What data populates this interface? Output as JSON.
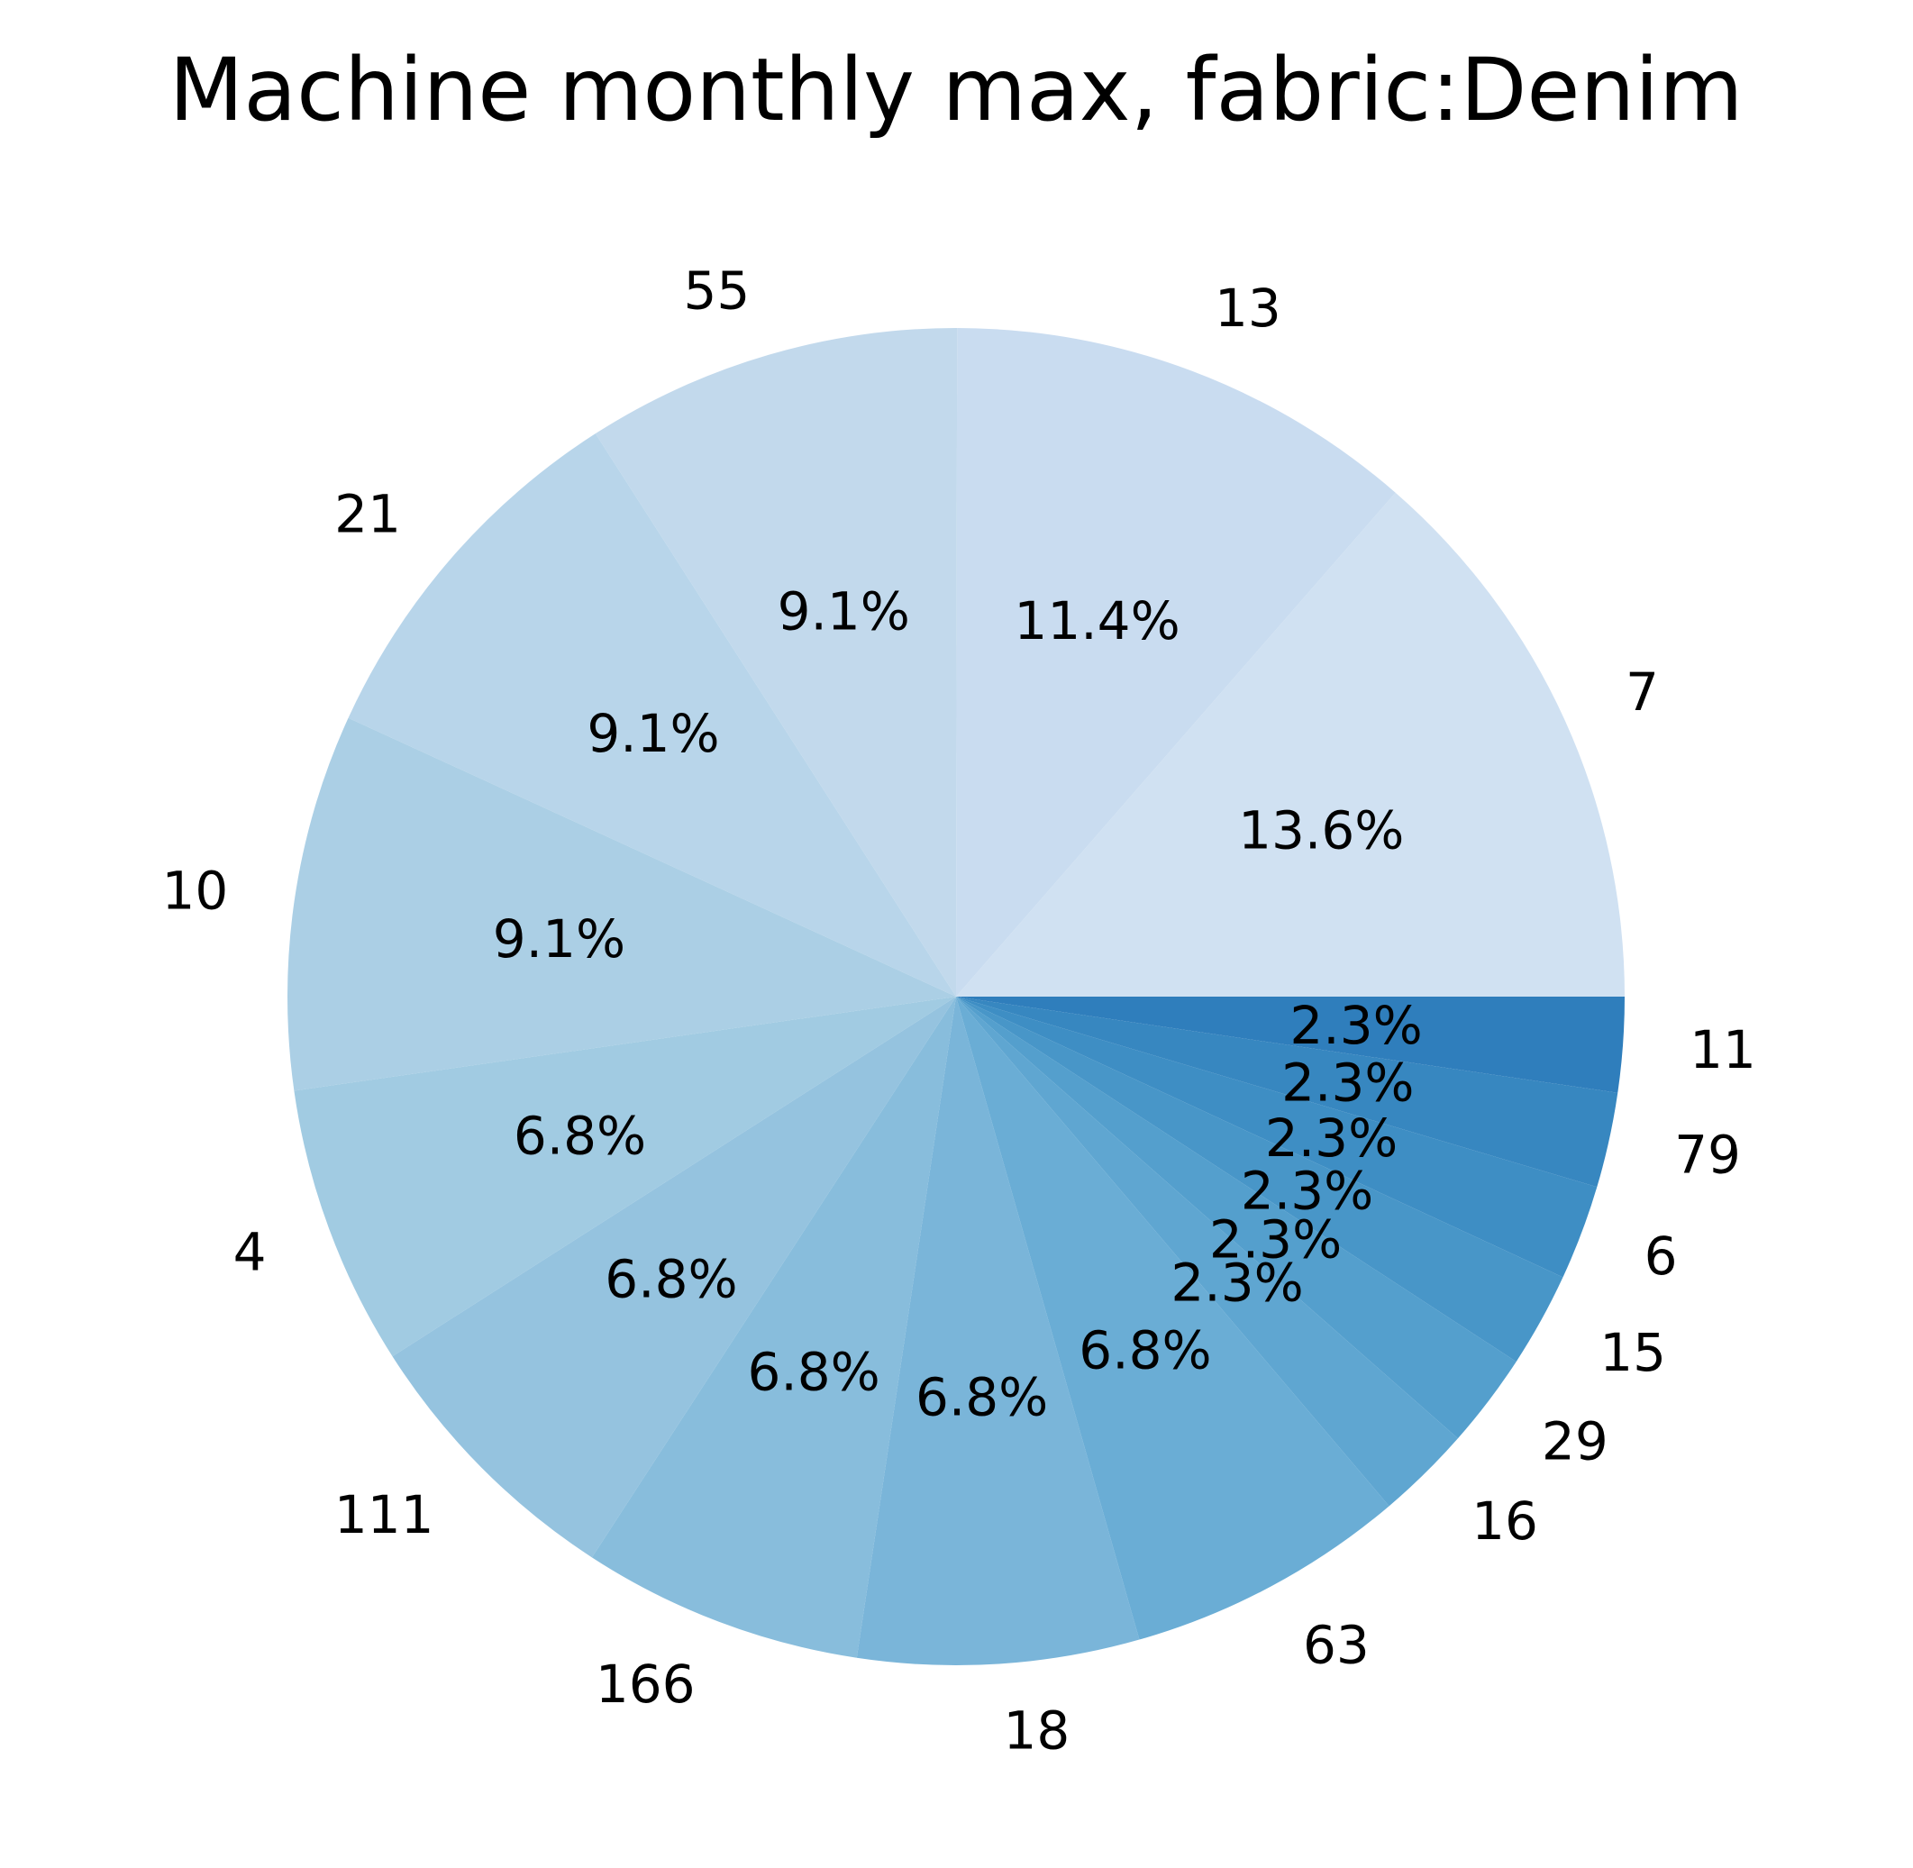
{
  "chart_data": {
    "type": "pie",
    "title": "Machine monthly max, fabric:Denim",
    "slices": [
      {
        "label": "7",
        "percent": "13.6%",
        "value": 13.6,
        "color": "#d0e1f2"
      },
      {
        "label": "13",
        "percent": "11.4%",
        "value": 11.4,
        "color": "#c9dcf0"
      },
      {
        "label": "55",
        "percent": "9.1%",
        "value": 9.1,
        "color": "#c2d9ec"
      },
      {
        "label": "21",
        "percent": "9.1%",
        "value": 9.1,
        "color": "#b8d5ea"
      },
      {
        "label": "10",
        "percent": "9.1%",
        "value": 9.1,
        "color": "#abcfe5"
      },
      {
        "label": "4",
        "percent": "6.8%",
        "value": 6.8,
        "color": "#a1cbe2"
      },
      {
        "label": "111",
        "percent": "6.8%",
        "value": 6.8,
        "color": "#95c3df"
      },
      {
        "label": "166",
        "percent": "6.8%",
        "value": 6.8,
        "color": "#88bddc"
      },
      {
        "label": "18",
        "percent": "6.8%",
        "value": 6.8,
        "color": "#7ab5d9"
      },
      {
        "label": "63",
        "percent": "6.8%",
        "value": 6.8,
        "color": "#6aadd5"
      },
      {
        "label": "16",
        "percent": "2.3%",
        "value": 2.3,
        "color": "#5fa6d1"
      },
      {
        "label": "29",
        "percent": "2.3%",
        "value": 2.3,
        "color": "#549fcd"
      },
      {
        "label": "15",
        "percent": "2.3%",
        "value": 2.3,
        "color": "#4896c8"
      },
      {
        "label": "6",
        "percent": "2.3%",
        "value": 2.3,
        "color": "#3e8ec4"
      },
      {
        "label": "79",
        "percent": "2.3%",
        "value": 2.3,
        "color": "#3787c0"
      },
      {
        "label": "11",
        "percent": "2.3%",
        "value": 2.3,
        "color": "#2f7ebc"
      }
    ],
    "legend": "none"
  }
}
